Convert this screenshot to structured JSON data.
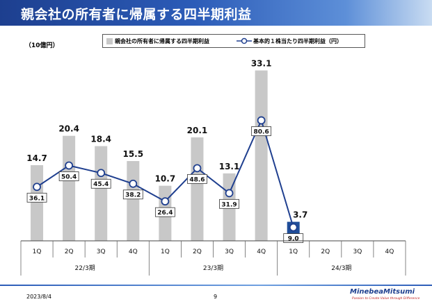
{
  "page": {
    "title": "親会社の所有者に帰属する四半期利益",
    "unit": "（10億円）",
    "footer_date": "2023/8/4",
    "page_number": "9",
    "brand": "MinebeaMitsumi",
    "tagline": "Passion to Create Value through Difference"
  },
  "colors": {
    "bar": "#c8c8c8",
    "bar_current": "#1f4e9a",
    "line": "#1f3f8f"
  },
  "chart_data": {
    "type": "bar",
    "categories": [
      "1Q",
      "2Q",
      "3Q",
      "4Q",
      "1Q",
      "2Q",
      "3Q",
      "4Q",
      "1Q",
      "2Q",
      "3Q",
      "4Q"
    ],
    "groups": [
      {
        "label": "22/3期",
        "start": 0,
        "count": 4
      },
      {
        "label": "23/3期",
        "start": 4,
        "count": 4
      },
      {
        "label": "24/3期",
        "start": 8,
        "count": 4
      }
    ],
    "series": [
      {
        "name": "親会社の所有者に帰属する四半期利益",
        "type": "bar",
        "values": [
          14.7,
          20.4,
          18.4,
          15.5,
          10.7,
          20.1,
          13.1,
          33.1,
          3.7,
          null,
          null,
          null
        ],
        "labels": [
          "14.7",
          "20.4",
          "18.4",
          "15.5",
          "10.7",
          "20.1",
          "13.1",
          "33.1",
          "3.7",
          "",
          "",
          ""
        ]
      },
      {
        "name": "基本的１株当たり四半期利益（円）",
        "type": "line",
        "values": [
          36.1,
          50.4,
          45.4,
          38.2,
          26.4,
          48.6,
          31.9,
          80.6,
          9.0,
          null,
          null,
          null
        ],
        "labels": [
          "36.1",
          "50.4",
          "45.4",
          "38.2",
          "26.4",
          "48.6",
          "31.9",
          "80.6",
          "9.0",
          "",
          "",
          ""
        ]
      }
    ],
    "ylim": [
      0,
      36
    ],
    "y2lim": [
      0,
      124
    ],
    "legend": "top"
  }
}
